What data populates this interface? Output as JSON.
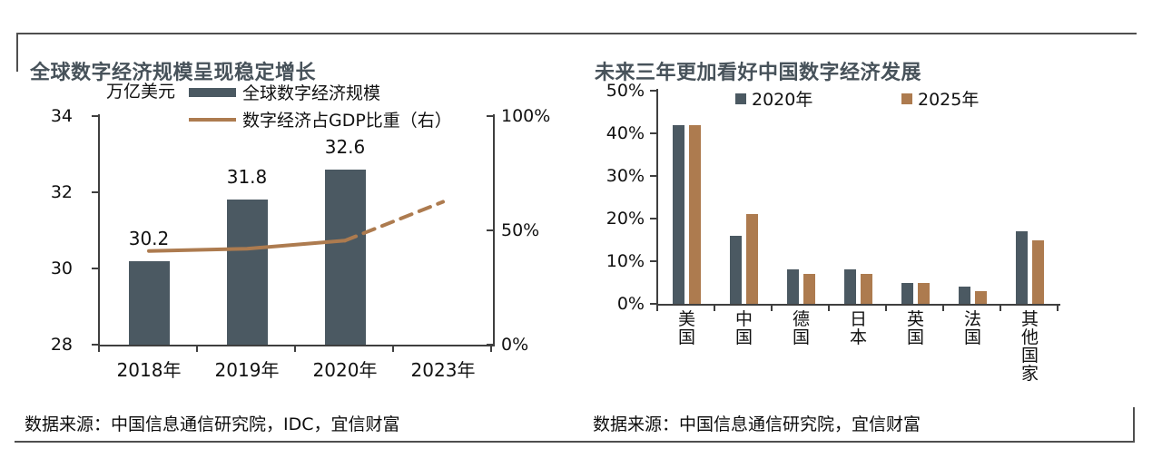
{
  "colors": {
    "bar_dark": "#4b5962",
    "line_brown": "#ad7b4f",
    "title_text": "#47525a",
    "frame_line": "#4f4f4f"
  },
  "sources": {
    "left": "数据来源：中国信息通信研究院，IDC，宜信财富",
    "right": "数据来源：中国信息通信研究院，宜信财富"
  },
  "chart_data": [
    {
      "type": "bar",
      "title": "全球数字经济规模呈现稳定增长",
      "categories": [
        "2018年",
        "2019年",
        "2020年",
        "2023年"
      ],
      "series": [
        {
          "name": "全球数字经济规模",
          "type": "bar",
          "axis": "left",
          "color": "#4b5962",
          "values": [
            30.2,
            31.8,
            32.6,
            null
          ]
        },
        {
          "name": "数字经济占GDP比重（右）",
          "type": "line",
          "axis": "right",
          "color": "#ad7b4f",
          "values": [
            41,
            42,
            45.5,
            62.5
          ],
          "dashed_from_index": 2
        }
      ],
      "left_axis": {
        "label": "万亿美元",
        "ticks": [
          "28",
          "30",
          "32",
          "34"
        ],
        "range": [
          28,
          34
        ]
      },
      "right_axis": {
        "ticks": [
          "0%",
          "50%",
          "100%"
        ],
        "range": [
          0,
          100
        ]
      },
      "data_labels": [
        "30.2",
        "31.8",
        "32.6"
      ],
      "legend_position": "top",
      "grid": false
    },
    {
      "type": "bar",
      "title": "未来三年更加看好中国数字经济发展",
      "categories": [
        "美国",
        "中国",
        "德国",
        "日本",
        "英国",
        "法国",
        "其他国家"
      ],
      "series": [
        {
          "name": "2020年",
          "color": "#4b5962",
          "values": [
            42,
            16,
            8,
            8,
            5,
            4,
            17
          ]
        },
        {
          "name": "2025年",
          "color": "#ad7b4f",
          "values": [
            42,
            21,
            7,
            7,
            5,
            3,
            15
          ]
        }
      ],
      "y_axis": {
        "ticks": [
          "0%",
          "10%",
          "20%",
          "30%",
          "40%",
          "50%"
        ],
        "range": [
          0,
          50
        ]
      },
      "legend_position": "top",
      "grid": false
    }
  ]
}
